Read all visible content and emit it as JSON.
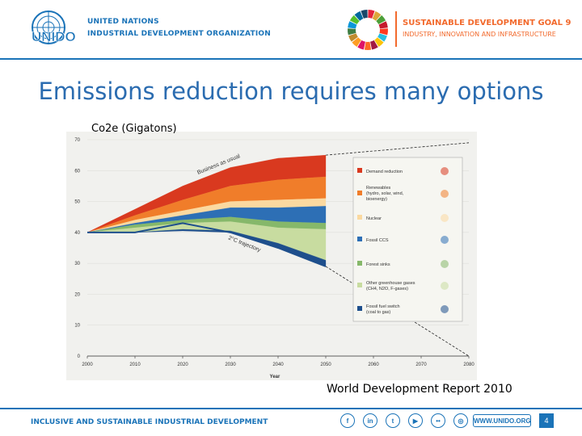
{
  "header": {
    "logo_text": "UNIDO",
    "org_line_1": "UNITED NATIONS",
    "org_line_2": "INDUSTRIAL DEVELOPMENT ORGANIZATION",
    "sdg_title": "SUSTAINABLE DEVELOPMENT GOAL 9",
    "sdg_subtitle": "INDUSTRY, INNOVATION AND INFRASTRUCTURE"
  },
  "slide": {
    "title": "Emissions reduction requires many options",
    "source": "World Development Report 2010"
  },
  "chart_data": {
    "type": "area",
    "title": "",
    "ylabel": "Co2e (Gigatons)",
    "xlabel": "Year",
    "xlim": [
      2000,
      2080
    ],
    "ylim": [
      0,
      70
    ],
    "x_ticks": [
      2000,
      2010,
      2020,
      2030,
      2040,
      2050,
      2060,
      2070,
      2080
    ],
    "y_ticks": [
      0,
      10,
      20,
      30,
      40,
      50,
      60,
      70
    ],
    "x": [
      2000,
      2010,
      2020,
      2030,
      2040,
      2050
    ],
    "business_as_usual": [
      40,
      47.5,
      55,
      61,
      64,
      65
    ],
    "trajectory_2c": [
      40,
      40,
      43,
      40,
      35,
      29
    ],
    "series": [
      {
        "name": "Demand reduction",
        "color": "#d9391f",
        "values": [
          0,
          2,
          4.5,
          6,
          7,
          7
        ]
      },
      {
        "name": "Renewables (hydro, solar, wind, bioenergy)",
        "color": "#f07d2a",
        "values": [
          0,
          1.5,
          3.5,
          5,
          6.5,
          7
        ]
      },
      {
        "name": "Nuclear",
        "color": "#fbd9a0",
        "values": [
          0,
          1,
          1.5,
          2,
          2.5,
          2.5
        ]
      },
      {
        "name": "Fossil CCS",
        "color": "#2d6fb5",
        "values": [
          0,
          0.5,
          1.5,
          3,
          4.5,
          5.5
        ]
      },
      {
        "name": "Forest sinks",
        "color": "#86b86a",
        "values": [
          0,
          1,
          1,
          1.5,
          2,
          2
        ]
      },
      {
        "name": "Other greenhouse gases (CH4, N2O, F-gases)",
        "color": "#c8dca0",
        "values": [
          0,
          1.5,
          2,
          3,
          5,
          10
        ]
      },
      {
        "name": "Fossil fuel switch (coal to gas)",
        "color": "#1e4f8c",
        "values": [
          0,
          0,
          0.5,
          0.5,
          1.5,
          2
        ]
      }
    ],
    "annotations": [
      "Business as usual",
      "2°C trajectory"
    ]
  },
  "footer": {
    "text": "INCLUSIVE AND SUSTAINABLE INDUSTRIAL DEVELOPMENT",
    "social": [
      "f",
      "in",
      "t",
      "▶",
      "••",
      "◎"
    ],
    "website": "WWW.UNIDO.ORG",
    "page": "4"
  }
}
